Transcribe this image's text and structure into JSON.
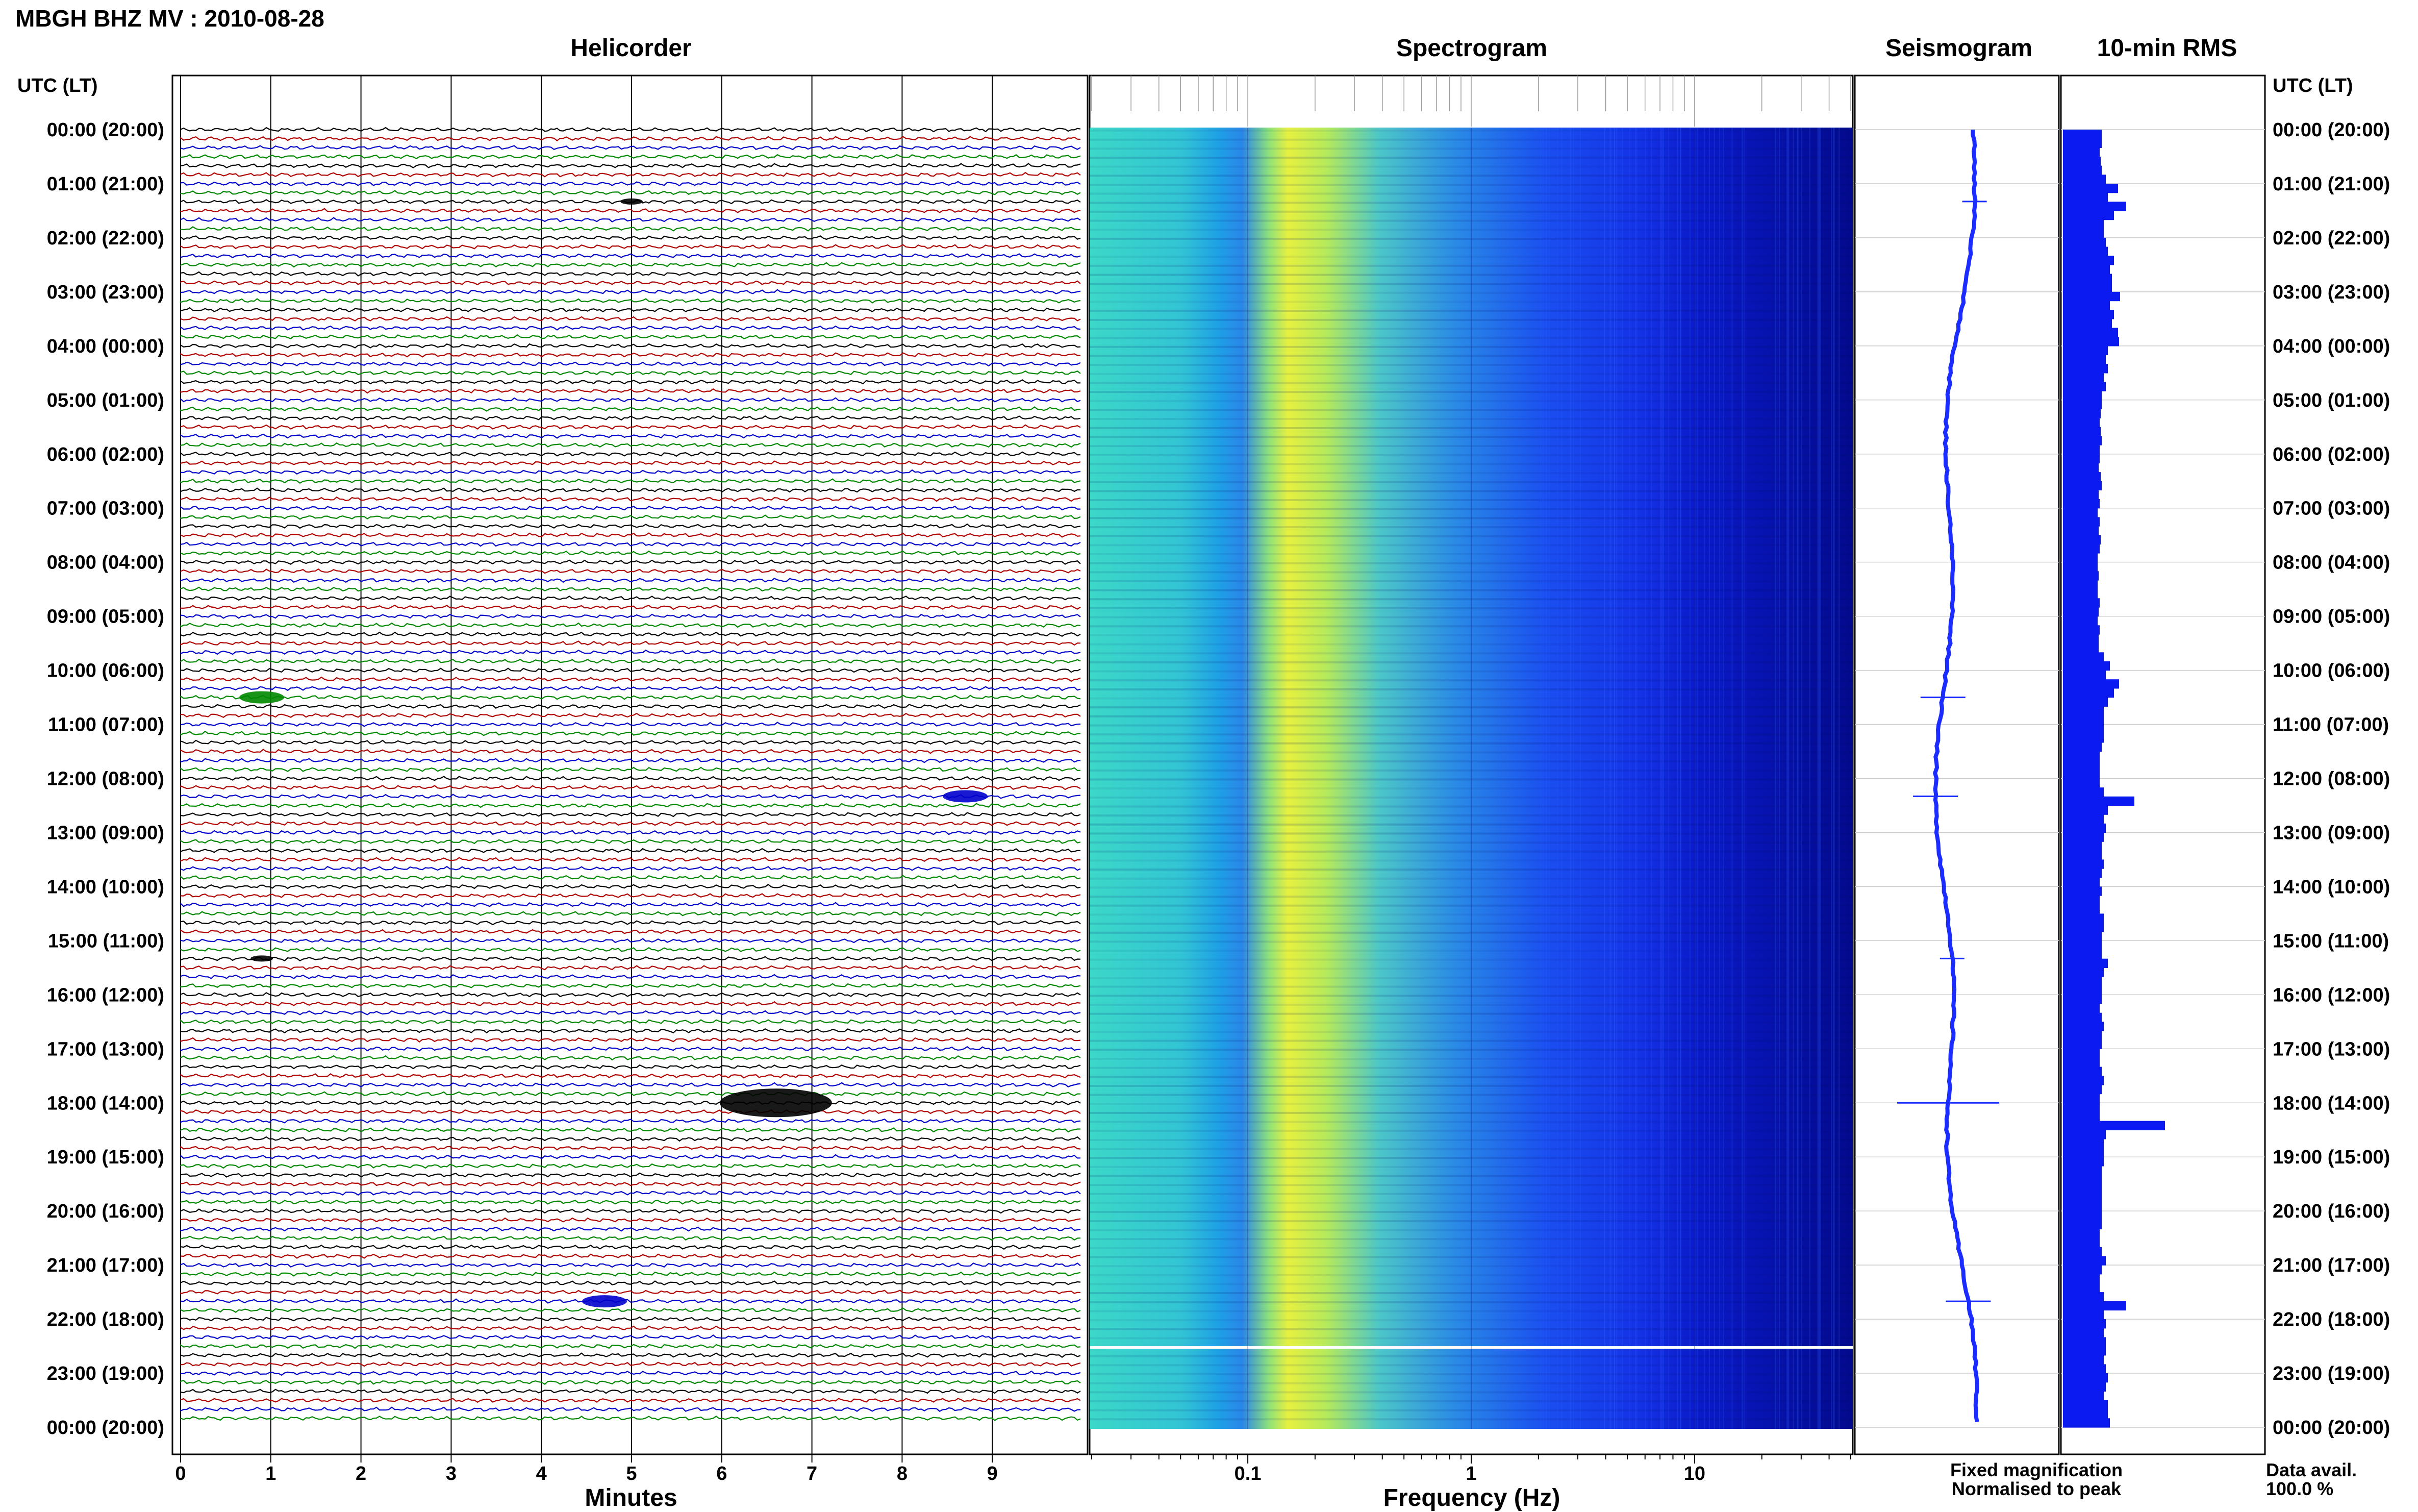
{
  "header": {
    "title": "MBGH BHZ MV : 2010-08-28"
  },
  "panels": {
    "helicorder": "Helicorder",
    "spectrogram": "Spectrogram",
    "seismogram": "Seismogram",
    "rms": "10-min RMS"
  },
  "time_axis": {
    "left_title": "UTC (LT)",
    "right_title": "UTC (LT)",
    "labels": [
      "00:00 (20:00)",
      "01:00 (21:00)",
      "02:00 (22:00)",
      "03:00 (23:00)",
      "04:00 (00:00)",
      "05:00 (01:00)",
      "06:00 (02:00)",
      "07:00 (03:00)",
      "08:00 (04:00)",
      "09:00 (05:00)",
      "10:00 (06:00)",
      "11:00 (07:00)",
      "12:00 (08:00)",
      "13:00 (09:00)",
      "14:00 (10:00)",
      "15:00 (11:00)",
      "16:00 (12:00)",
      "17:00 (13:00)",
      "18:00 (14:00)",
      "19:00 (15:00)",
      "20:00 (16:00)",
      "21:00 (17:00)",
      "22:00 (18:00)",
      "23:00 (19:00)",
      "00:00 (20:00)"
    ]
  },
  "legend": {
    "fixed": "Fixed magnification",
    "normalised": "Normalised to peak",
    "data_avail_label": "Data avail.",
    "data_avail_value": "100.0 %"
  },
  "colors": {
    "trace_cycle": [
      "#000000",
      "#b00000",
      "#0000cc",
      "#008800"
    ],
    "seismogram": "#1a2cff",
    "rms": "#0a1af0",
    "fixed_label": "#1a1aff",
    "normalised_label": "#ff0000"
  },
  "chart_data": [
    {
      "type": "helicorder",
      "title": "Helicorder",
      "xlabel": "Minutes",
      "x_ticks": [
        0,
        1,
        2,
        3,
        4,
        5,
        6,
        7,
        8,
        9
      ],
      "xlim": [
        0,
        10
      ],
      "traces_per_hour": 6,
      "hours": 24,
      "events": [
        {
          "utc_hour": 1.33,
          "minute": 5.0,
          "size": "small"
        },
        {
          "utc_hour": 10.5,
          "minute": 0.9,
          "size": "medium"
        },
        {
          "utc_hour": 12.33,
          "minute": 8.7,
          "size": "medium"
        },
        {
          "utc_hour": 15.33,
          "minute": 0.9,
          "size": "small"
        },
        {
          "utc_hour": 18.0,
          "minute": 6.6,
          "size": "large"
        },
        {
          "utc_hour": 21.67,
          "minute": 4.7,
          "size": "medium"
        }
      ]
    },
    {
      "type": "heatmap",
      "title": "Spectrogram",
      "xlabel": "Frequency (Hz)",
      "x_scale": "log",
      "x_ticks": [
        0.1,
        1,
        10
      ],
      "x_tick_labels": [
        "0.1",
        "1",
        "10"
      ],
      "xlim": [
        0.02,
        50
      ],
      "colormap": "cyan-yellow-blue",
      "gap_utc_hour": 22.5
    },
    {
      "type": "line",
      "title": "Seismogram",
      "label": "Fixed magnification"
    },
    {
      "type": "bar",
      "title": "10-min RMS",
      "label": "Normalised to peak",
      "values": [
        0.38,
        0.38,
        0.36,
        0.37,
        0.38,
        0.42,
        0.54,
        0.44,
        0.62,
        0.5,
        0.4,
        0.4,
        0.42,
        0.44,
        0.5,
        0.46,
        0.48,
        0.48,
        0.56,
        0.46,
        0.5,
        0.48,
        0.54,
        0.55,
        0.44,
        0.42,
        0.44,
        0.4,
        0.42,
        0.38,
        0.38,
        0.37,
        0.36,
        0.37,
        0.38,
        0.36,
        0.36,
        0.35,
        0.37,
        0.38,
        0.35,
        0.36,
        0.34,
        0.36,
        0.35,
        0.37,
        0.36,
        0.34,
        0.34,
        0.35,
        0.34,
        0.34,
        0.36,
        0.35,
        0.34,
        0.36,
        0.35,
        0.35,
        0.4,
        0.46,
        0.42,
        0.55,
        0.5,
        0.44,
        0.4,
        0.4,
        0.4,
        0.4,
        0.38,
        0.36,
        0.36,
        0.36,
        0.36,
        0.4,
        0.7,
        0.44,
        0.4,
        0.42,
        0.4,
        0.38,
        0.38,
        0.4,
        0.38,
        0.36,
        0.38,
        0.36,
        0.36,
        0.4,
        0.4,
        0.38,
        0.38,
        0.38,
        0.44,
        0.4,
        0.38,
        0.38,
        0.38,
        0.36,
        0.38,
        0.4,
        0.38,
        0.38,
        0.36,
        0.36,
        0.38,
        0.4,
        0.38,
        0.36,
        0.36,
        0.36,
        1.0,
        0.42,
        0.4,
        0.4,
        0.4,
        0.38,
        0.38,
        0.38,
        0.38,
        0.38,
        0.38,
        0.38,
        0.36,
        0.36,
        0.38,
        0.42,
        0.38,
        0.36,
        0.36,
        0.4,
        0.62,
        0.4,
        0.42,
        0.4,
        0.42,
        0.42,
        0.4,
        0.42,
        0.44,
        0.42,
        0.4,
        0.44,
        0.44,
        0.46
      ]
    }
  ]
}
